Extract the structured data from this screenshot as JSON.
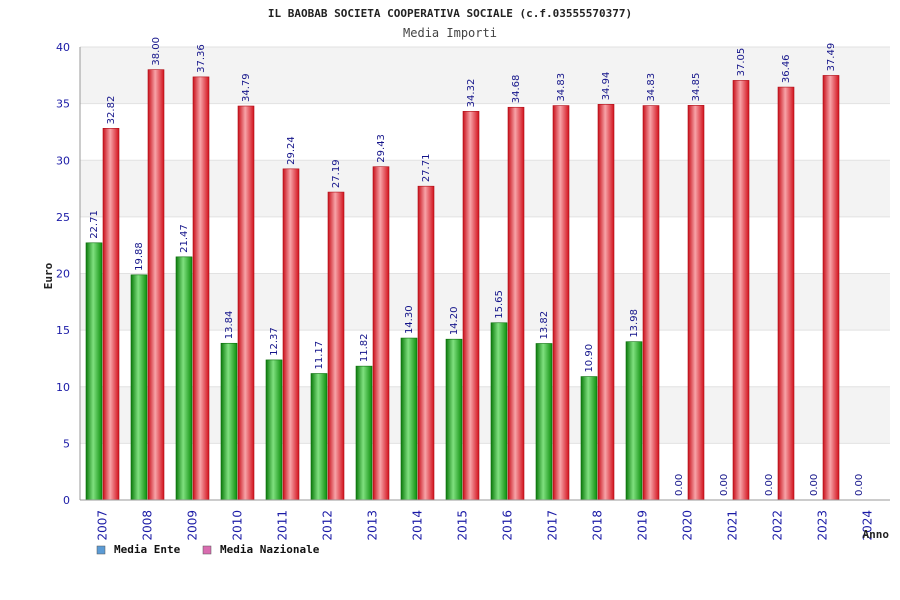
{
  "chart_data": {
    "type": "bar",
    "title": "IL BAOBAB SOCIETA COOPERATIVA SOCIALE (c.f.03555570377)",
    "subtitle": "Media Importi",
    "xlabel": "Anno",
    "ylabel": "Euro",
    "ylim": [
      0,
      40
    ],
    "yticks": [
      0,
      5,
      10,
      15,
      20,
      25,
      30,
      35,
      40
    ],
    "grid": true,
    "legend_position": "bottom-left",
    "categories": [
      "2007",
      "2008",
      "2009",
      "2010",
      "2011",
      "2012",
      "2013",
      "2014",
      "2015",
      "2016",
      "2017",
      "2018",
      "2019",
      "2020",
      "2021",
      "2022",
      "2023",
      "2024"
    ],
    "series": [
      {
        "name": "Media Ente",
        "color": "#1bb31b",
        "legend_color": "#5b9bd5",
        "values": [
          22.71,
          19.88,
          21.47,
          13.84,
          12.37,
          11.17,
          11.82,
          14.3,
          14.2,
          15.65,
          13.82,
          10.9,
          13.98,
          0.0,
          0.0,
          0.0,
          0.0,
          0.0
        ],
        "labels": [
          "22.71",
          "19.88",
          "21.47",
          "13.84",
          "12.37",
          "11.17",
          "11.82",
          "14.30",
          "14.20",
          "15.65",
          "13.82",
          "10.90",
          "13.98",
          "0.00",
          "0.00",
          "0.00",
          "0.00",
          "0.00"
        ]
      },
      {
        "name": "Media Nazionale",
        "color": "#e8202a",
        "legend_color": "#d96cb0",
        "values": [
          32.82,
          38.0,
          37.36,
          34.79,
          29.24,
          27.19,
          29.43,
          27.71,
          34.32,
          34.68,
          34.83,
          34.94,
          34.83,
          34.85,
          37.05,
          36.46,
          37.49,
          null
        ],
        "labels": [
          "32.82",
          "38.00",
          "37.36",
          "34.79",
          "29.24",
          "27.19",
          "29.43",
          "27.71",
          "34.32",
          "34.68",
          "34.83",
          "34.94",
          "34.83",
          "34.85",
          "37.05",
          "36.46",
          "37.49",
          null
        ]
      }
    ]
  }
}
